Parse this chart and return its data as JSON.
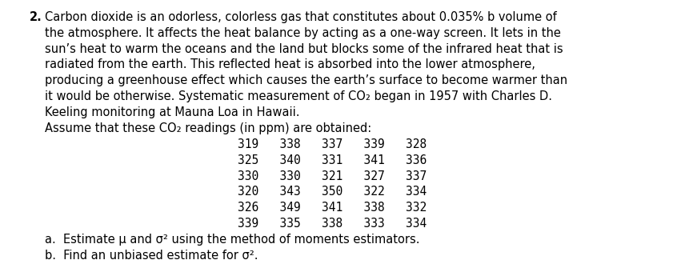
{
  "background_color": "#ffffff",
  "text_color": "#000000",
  "font_family": "DejaVu Sans",
  "font_size": 10.5,
  "number": "2.",
  "paragraph": "Carbon dioxide is an odorless, colorless gas that constitutes about 0.035% b volume of\nthe atmosphere. It affects the heat balance by acting as a one-way screen. It lets in the\nsun’s heat to warm the oceans and the land but blocks some of the infrared heat that is\nradiated from the earth. This reflected heat is absorbed into the lower atmosphere,\nproducing a greenhouse effect which causes the earth’s surface to become warmer than\nit would be otherwise. Systematic measurement of CO₂ began in 1957 with Charles D.\nKeeling monitoring at Mauna Loa in Hawaii.",
  "assume_line": "Assume that these CO₂ readings (in ppm) are obtained:",
  "data_rows": [
    "319   338   337   339   328",
    "325   340   331   341   336",
    "330   330   321   327   337",
    "320   343   350   322   334",
    "326   349   341   338   332",
    "339   335   338   333   334"
  ],
  "part_a": "a.  Estimate μ and σ² using the method of moments estimators.",
  "part_b": "b.  Find an unbiased estimate for σ²."
}
